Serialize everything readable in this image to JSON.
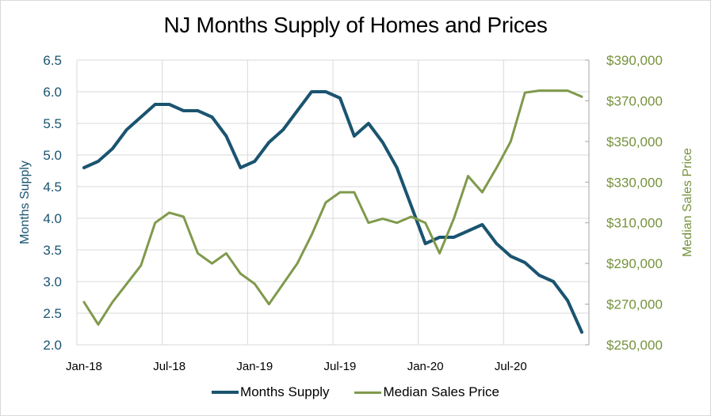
{
  "chart_data": {
    "type": "line",
    "title": "NJ Months Supply of Homes and Prices",
    "xlabel": "",
    "ylabel": "Months Supply",
    "y2label": "Median Sales Price",
    "ylim": [
      2.0,
      6.5
    ],
    "y2lim": [
      250000,
      390000
    ],
    "grid": true,
    "legend_position": "bottom",
    "x": [
      "Jan-18",
      "Feb-18",
      "Mar-18",
      "Apr-18",
      "May-18",
      "Jun-18",
      "Jul-18",
      "Aug-18",
      "Sep-18",
      "Oct-18",
      "Nov-18",
      "Dec-18",
      "Jan-19",
      "Feb-19",
      "Mar-19",
      "Apr-19",
      "May-19",
      "Jun-19",
      "Jul-19",
      "Aug-19",
      "Sep-19",
      "Oct-19",
      "Nov-19",
      "Dec-19",
      "Jan-20",
      "Feb-20",
      "Mar-20",
      "Apr-20",
      "May-20",
      "Jun-20",
      "Jul-20",
      "Aug-20",
      "Sep-20",
      "Oct-20",
      "Nov-20",
      "Dec-20"
    ],
    "x_tick_labels": [
      "Jan-18",
      "Jul-18",
      "Jan-19",
      "Jul-19",
      "Jan-20",
      "Jul-20"
    ],
    "y_tick_labels": [
      "6.5",
      "6.0",
      "5.5",
      "5.0",
      "4.5",
      "4.0",
      "3.5",
      "3.0",
      "2.5",
      "2.0"
    ],
    "y2_tick_labels": [
      "$390,000",
      "$370,000",
      "$350,000",
      "$330,000",
      "$310,000",
      "$290,000",
      "$270,000",
      "$250,000"
    ],
    "series": [
      {
        "name": "Months Supply",
        "axis": "left",
        "color": "#1a5470",
        "values": [
          4.8,
          4.9,
          5.1,
          5.4,
          5.6,
          5.8,
          5.8,
          5.7,
          5.7,
          5.6,
          5.3,
          4.8,
          4.9,
          5.2,
          5.4,
          5.7,
          6.0,
          6.0,
          5.9,
          5.3,
          5.5,
          5.2,
          4.8,
          4.2,
          3.6,
          3.7,
          3.7,
          3.8,
          3.9,
          3.6,
          3.4,
          3.3,
          3.1,
          3.0,
          2.7,
          2.2
        ]
      },
      {
        "name": "Median Sales Price",
        "axis": "right",
        "color": "#7f9a4c",
        "values": [
          271000,
          260000,
          271000,
          280000,
          289000,
          310000,
          315000,
          313000,
          295000,
          290000,
          295000,
          285000,
          280000,
          270000,
          280000,
          290000,
          304000,
          320000,
          325000,
          325000,
          310000,
          312000,
          310000,
          313000,
          310000,
          295000,
          312000,
          333000,
          325000,
          337000,
          350000,
          374000,
          375000,
          375000,
          375000,
          372000
        ]
      }
    ]
  }
}
